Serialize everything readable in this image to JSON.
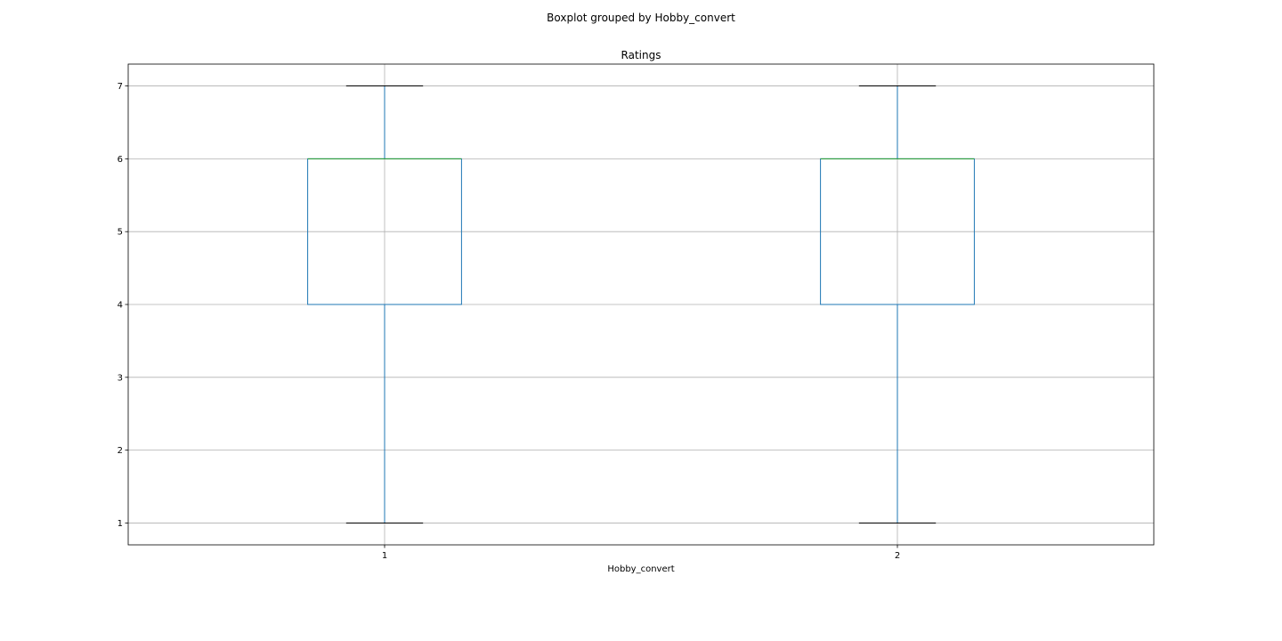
{
  "chart_data": {
    "type": "boxplot",
    "suptitle": "Boxplot grouped by Hobby_convert",
    "title": "Ratings",
    "xlabel": "Hobby_convert",
    "ylabel": "",
    "categories": [
      "1",
      "2"
    ],
    "boxes": [
      {
        "category": "1",
        "whisker_low": 1,
        "q1": 4,
        "median": 6,
        "q3": 6,
        "whisker_high": 7
      },
      {
        "category": "2",
        "whisker_low": 1,
        "q1": 4,
        "median": 6,
        "q3": 6,
        "whisker_high": 7
      }
    ],
    "yticks": [
      1,
      2,
      3,
      4,
      5,
      6,
      7
    ],
    "ylim": [
      0.7,
      7.3
    ],
    "grid": true,
    "colors": {
      "box": "#1f77b4",
      "median": "#2ca02c",
      "cap": "#000000",
      "grid": "#b0b0b0"
    }
  }
}
